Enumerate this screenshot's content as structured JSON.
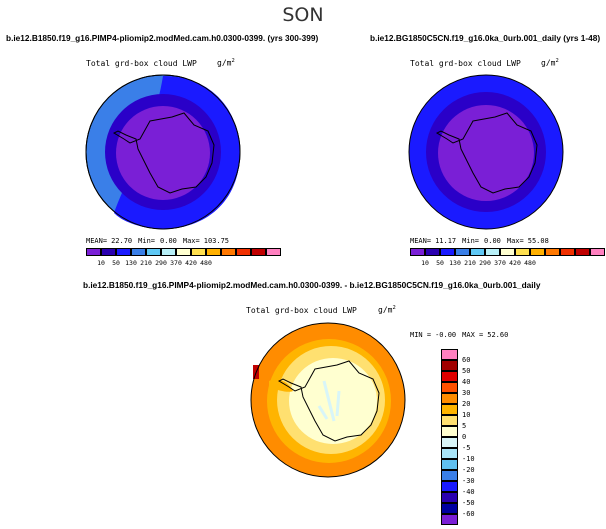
{
  "season": "SON",
  "left_panel": {
    "case": "b.ie12.B1850.f19_g16.PIMP4-pliomip2.modMed.cam.h0.0300-0399. (yrs 300-399)",
    "title": "Total grd-box cloud LWP",
    "units": "g/m",
    "units_exp": "2",
    "stats": {
      "mean_label": "MEAN=",
      "mean": "22.70",
      "min_label": "Min=",
      "min": "0.00",
      "max_label": "Max=",
      "max": "103.75"
    }
  },
  "right_panel": {
    "case": "b.ie12.BG1850C5CN.f19_g16.0ka_0urb.001_daily (yrs 1-48)",
    "title": "Total grd-box cloud LWP",
    "units": "g/m",
    "units_exp": "2",
    "stats": {
      "mean_label": "MEAN=",
      "mean": "11.17",
      "min_label": "Min=",
      "min": "0.00",
      "max_label": "Max=",
      "max": "55.08"
    }
  },
  "diff_panel": {
    "case": "b.ie12.B1850.f19_g16.PIMP4-pliomip2.modMed.cam.h0.0300-0399. - b.ie12.BG1850C5CN.f19_g16.0ka_0urb.001_daily",
    "title": "Total grd-box cloud LWP",
    "units": "g/m",
    "units_exp": "2",
    "stats": {
      "min_label": "MIN =",
      "min": "-0.00",
      "max_label": "MAX =",
      "max": "52.60"
    }
  },
  "colorbar_levels": [
    "10",
    "50",
    "130",
    "210",
    "290",
    "370",
    "420",
    "480"
  ],
  "colorbar_colors": [
    "#7a1fd6",
    "#2a00b0",
    "#1a1aff",
    "#3a7fe8",
    "#5fc8f5",
    "#b8f0f8",
    "#ffffd0",
    "#ffe050",
    "#ffb000",
    "#ff7800",
    "#f03000",
    "#c00000",
    "#ff80c0"
  ],
  "diff_levels": [
    "60",
    "50",
    "40",
    "30",
    "20",
    "10",
    "5",
    "0",
    "-5",
    "-10",
    "-20",
    "-30",
    "-40",
    "-50",
    "-60"
  ],
  "diff_colors": [
    "#ff80c0",
    "#a00000",
    "#e00000",
    "#ff5000",
    "#ff8c00",
    "#ffb400",
    "#ffe070",
    "#ffffd0",
    "#d8f5f8",
    "#a8e4f8",
    "#60c0f0",
    "#3a7fe8",
    "#1a1aff",
    "#2a00b0",
    "#0000a0",
    "#7a1fd6"
  ],
  "colors": {
    "low_purple": "#7a1fd6",
    "mid_blue": "#2a00c8",
    "ocean_blue": "#1a1aff",
    "light_blue": "#3a7fe8",
    "diff_orange": "#ff8c00",
    "diff_yellow": "#ffe070",
    "diff_cream": "#ffffd0"
  }
}
